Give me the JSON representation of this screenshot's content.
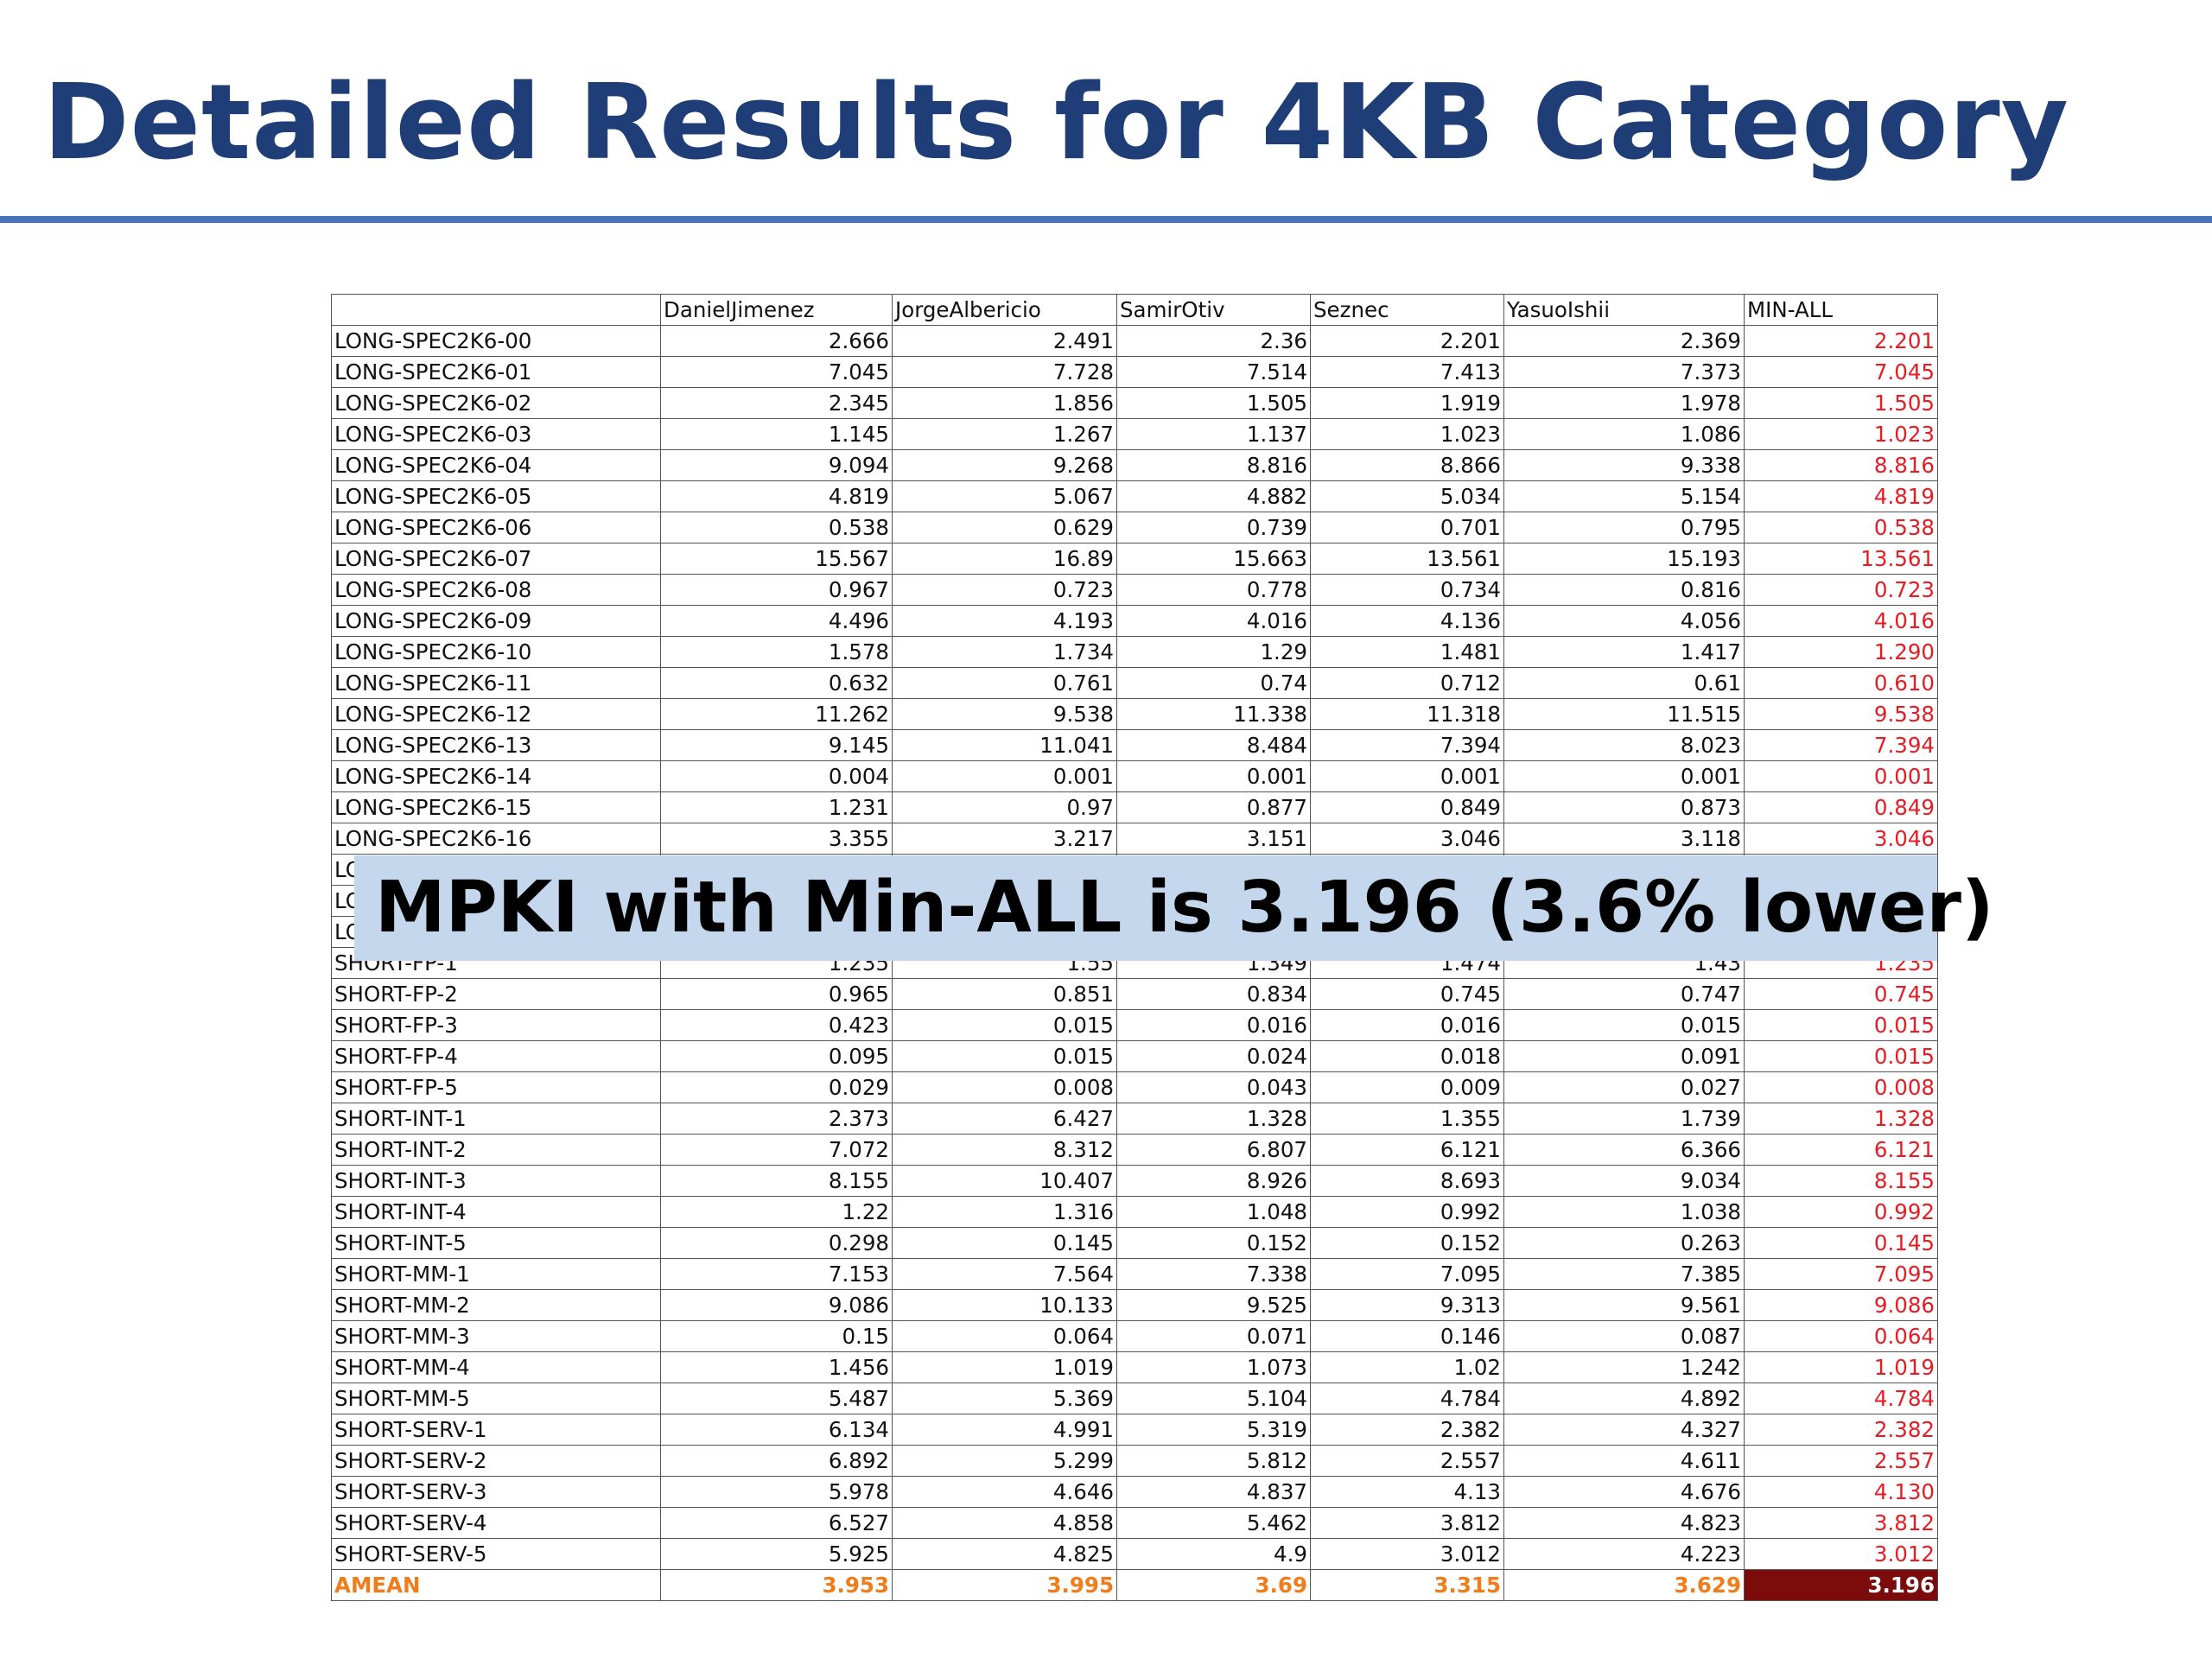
{
  "title": "Detailed Results for 4KB Category",
  "callout": "MPKI with Min-ALL is 3.196 (3.6% lower)",
  "table": {
    "columns": [
      "",
      "DanielJimenez",
      "JorgeAlbericio",
      "SamirOtiv",
      "Seznec",
      "YasuoIshii",
      "MIN-ALL"
    ],
    "rows": [
      {
        "label": "LONG-SPEC2K6-00",
        "values": [
          "2.666",
          "2.491",
          "2.36",
          "2.201",
          "2.369"
        ],
        "min": "2.201"
      },
      {
        "label": "LONG-SPEC2K6-01",
        "values": [
          "7.045",
          "7.728",
          "7.514",
          "7.413",
          "7.373"
        ],
        "min": "7.045"
      },
      {
        "label": "LONG-SPEC2K6-02",
        "values": [
          "2.345",
          "1.856",
          "1.505",
          "1.919",
          "1.978"
        ],
        "min": "1.505"
      },
      {
        "label": "LONG-SPEC2K6-03",
        "values": [
          "1.145",
          "1.267",
          "1.137",
          "1.023",
          "1.086"
        ],
        "min": "1.023"
      },
      {
        "label": "LONG-SPEC2K6-04",
        "values": [
          "9.094",
          "9.268",
          "8.816",
          "8.866",
          "9.338"
        ],
        "min": "8.816"
      },
      {
        "label": "LONG-SPEC2K6-05",
        "values": [
          "4.819",
          "5.067",
          "4.882",
          "5.034",
          "5.154"
        ],
        "min": "4.819"
      },
      {
        "label": "LONG-SPEC2K6-06",
        "values": [
          "0.538",
          "0.629",
          "0.739",
          "0.701",
          "0.795"
        ],
        "min": "0.538"
      },
      {
        "label": "LONG-SPEC2K6-07",
        "values": [
          "15.567",
          "16.89",
          "15.663",
          "13.561",
          "15.193"
        ],
        "min": "13.561"
      },
      {
        "label": "LONG-SPEC2K6-08",
        "values": [
          "0.967",
          "0.723",
          "0.778",
          "0.734",
          "0.816"
        ],
        "min": "0.723"
      },
      {
        "label": "LONG-SPEC2K6-09",
        "values": [
          "4.496",
          "4.193",
          "4.016",
          "4.136",
          "4.056"
        ],
        "min": "4.016"
      },
      {
        "label": "LONG-SPEC2K6-10",
        "values": [
          "1.578",
          "1.734",
          "1.29",
          "1.481",
          "1.417"
        ],
        "min": "1.290"
      },
      {
        "label": "LONG-SPEC2K6-11",
        "values": [
          "0.632",
          "0.761",
          "0.74",
          "0.712",
          "0.61"
        ],
        "min": "0.610"
      },
      {
        "label": "LONG-SPEC2K6-12",
        "values": [
          "11.262",
          "9.538",
          "11.338",
          "11.318",
          "11.515"
        ],
        "min": "9.538"
      },
      {
        "label": "LONG-SPEC2K6-13",
        "values": [
          "9.145",
          "11.041",
          "8.484",
          "7.394",
          "8.023"
        ],
        "min": "7.394"
      },
      {
        "label": "LONG-SPEC2K6-14",
        "values": [
          "0.004",
          "0.001",
          "0.001",
          "0.001",
          "0.001"
        ],
        "min": "0.001"
      },
      {
        "label": "LONG-SPEC2K6-15",
        "values": [
          "1.231",
          "0.97",
          "0.877",
          "0.849",
          "0.873"
        ],
        "min": "0.849"
      },
      {
        "label": "LONG-SPEC2K6-16",
        "values": [
          "3.355",
          "3.217",
          "3.151",
          "3.046",
          "3.118"
        ],
        "min": "3.046"
      },
      {
        "label": "LO",
        "values": [
          "",
          "",
          "",
          "",
          ""
        ],
        "min": ""
      },
      {
        "label": "LO",
        "values": [
          "",
          "",
          "",
          "",
          ""
        ],
        "min": ""
      },
      {
        "label": "LO",
        "values": [
          "",
          "",
          "",
          "",
          ""
        ],
        "min": ""
      },
      {
        "label": "SHORT-FP-1",
        "values": [
          "1.235",
          "1.55",
          "1.349",
          "1.474",
          "1.43"
        ],
        "min": "1.235"
      },
      {
        "label": "SHORT-FP-2",
        "values": [
          "0.965",
          "0.851",
          "0.834",
          "0.745",
          "0.747"
        ],
        "min": "0.745"
      },
      {
        "label": "SHORT-FP-3",
        "values": [
          "0.423",
          "0.015",
          "0.016",
          "0.016",
          "0.015"
        ],
        "min": "0.015"
      },
      {
        "label": "SHORT-FP-4",
        "values": [
          "0.095",
          "0.015",
          "0.024",
          "0.018",
          "0.091"
        ],
        "min": "0.015"
      },
      {
        "label": "SHORT-FP-5",
        "values": [
          "0.029",
          "0.008",
          "0.043",
          "0.009",
          "0.027"
        ],
        "min": "0.008"
      },
      {
        "label": "SHORT-INT-1",
        "values": [
          "2.373",
          "6.427",
          "1.328",
          "1.355",
          "1.739"
        ],
        "min": "1.328"
      },
      {
        "label": "SHORT-INT-2",
        "values": [
          "7.072",
          "8.312",
          "6.807",
          "6.121",
          "6.366"
        ],
        "min": "6.121"
      },
      {
        "label": "SHORT-INT-3",
        "values": [
          "8.155",
          "10.407",
          "8.926",
          "8.693",
          "9.034"
        ],
        "min": "8.155"
      },
      {
        "label": "SHORT-INT-4",
        "values": [
          "1.22",
          "1.316",
          "1.048",
          "0.992",
          "1.038"
        ],
        "min": "0.992"
      },
      {
        "label": "SHORT-INT-5",
        "values": [
          "0.298",
          "0.145",
          "0.152",
          "0.152",
          "0.263"
        ],
        "min": "0.145"
      },
      {
        "label": "SHORT-MM-1",
        "values": [
          "7.153",
          "7.564",
          "7.338",
          "7.095",
          "7.385"
        ],
        "min": "7.095"
      },
      {
        "label": "SHORT-MM-2",
        "values": [
          "9.086",
          "10.133",
          "9.525",
          "9.313",
          "9.561"
        ],
        "min": "9.086"
      },
      {
        "label": "SHORT-MM-3",
        "values": [
          "0.15",
          "0.064",
          "0.071",
          "0.146",
          "0.087"
        ],
        "min": "0.064"
      },
      {
        "label": "SHORT-MM-4",
        "values": [
          "1.456",
          "1.019",
          "1.073",
          "1.02",
          "1.242"
        ],
        "min": "1.019"
      },
      {
        "label": "SHORT-MM-5",
        "values": [
          "5.487",
          "5.369",
          "5.104",
          "4.784",
          "4.892"
        ],
        "min": "4.784"
      },
      {
        "label": "SHORT-SERV-1",
        "values": [
          "6.134",
          "4.991",
          "5.319",
          "2.382",
          "4.327"
        ],
        "min": "2.382"
      },
      {
        "label": "SHORT-SERV-2",
        "values": [
          "6.892",
          "5.299",
          "5.812",
          "2.557",
          "4.611"
        ],
        "min": "2.557"
      },
      {
        "label": "SHORT-SERV-3",
        "values": [
          "5.978",
          "4.646",
          "4.837",
          "4.13",
          "4.676"
        ],
        "min": "4.130"
      },
      {
        "label": "SHORT-SERV-4",
        "values": [
          "6.527",
          "4.858",
          "5.462",
          "3.812",
          "4.823"
        ],
        "min": "3.812"
      },
      {
        "label": "SHORT-SERV-5",
        "values": [
          "5.925",
          "4.825",
          "4.9",
          "3.012",
          "4.223"
        ],
        "min": "3.012"
      }
    ],
    "amean": {
      "label": "AMEAN",
      "values": [
        "3.953",
        "3.995",
        "3.69",
        "3.315",
        "3.629"
      ],
      "min": "3.196"
    }
  },
  "colors": {
    "title": "#1f3e78",
    "rule": "#4a74b8",
    "min_value": "#e51c23",
    "amean": "#f07d1b",
    "amean_min_bg": "#7c0b0b",
    "callout_bg": "#c5d7ec"
  }
}
